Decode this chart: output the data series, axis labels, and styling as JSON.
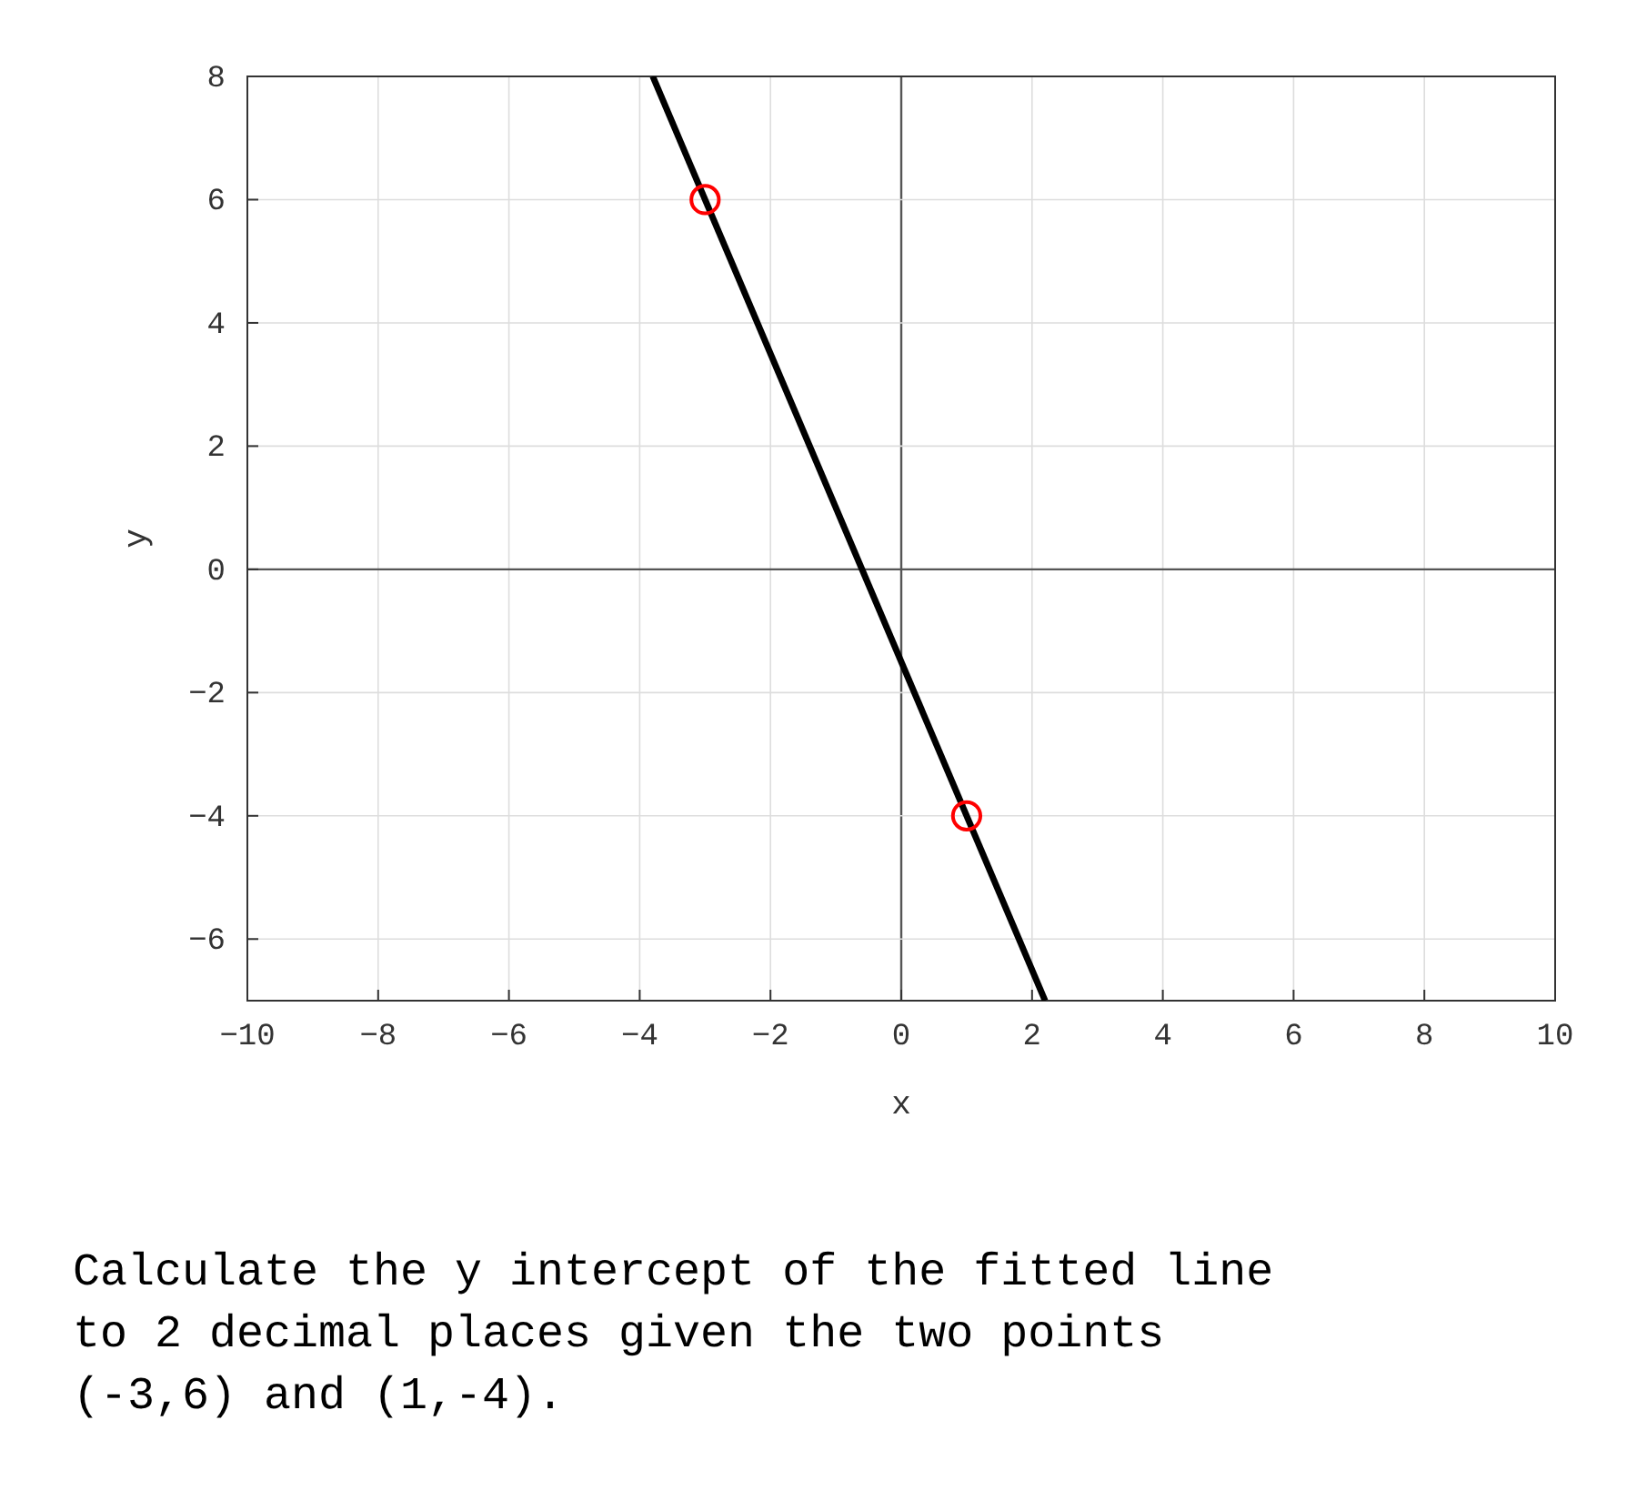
{
  "chart_data": {
    "type": "line",
    "xlabel": "x",
    "ylabel": "y",
    "xlim": [
      -10,
      10
    ],
    "ylim": [
      -7,
      8
    ],
    "xticks": [
      -10,
      -8,
      -6,
      -4,
      -2,
      0,
      2,
      4,
      6,
      8,
      10
    ],
    "yticks": [
      -6,
      -4,
      -2,
      0,
      2,
      4,
      6,
      8
    ],
    "grid": true,
    "series": [
      {
        "color": "#000000",
        "x": [
          -3.8,
          2.2
        ],
        "values": [
          8,
          -7
        ],
        "line_style": "solid"
      },
      {
        "type": "scatter",
        "color": "#ff0000",
        "x": [
          -3,
          1
        ],
        "values": [
          6,
          -4
        ],
        "marker": "circle"
      }
    ],
    "annotations": [
      "Calculate the y intercept of the fitted line to 2 decimal places given the two points (-3,6) and (1,-4)."
    ]
  }
}
